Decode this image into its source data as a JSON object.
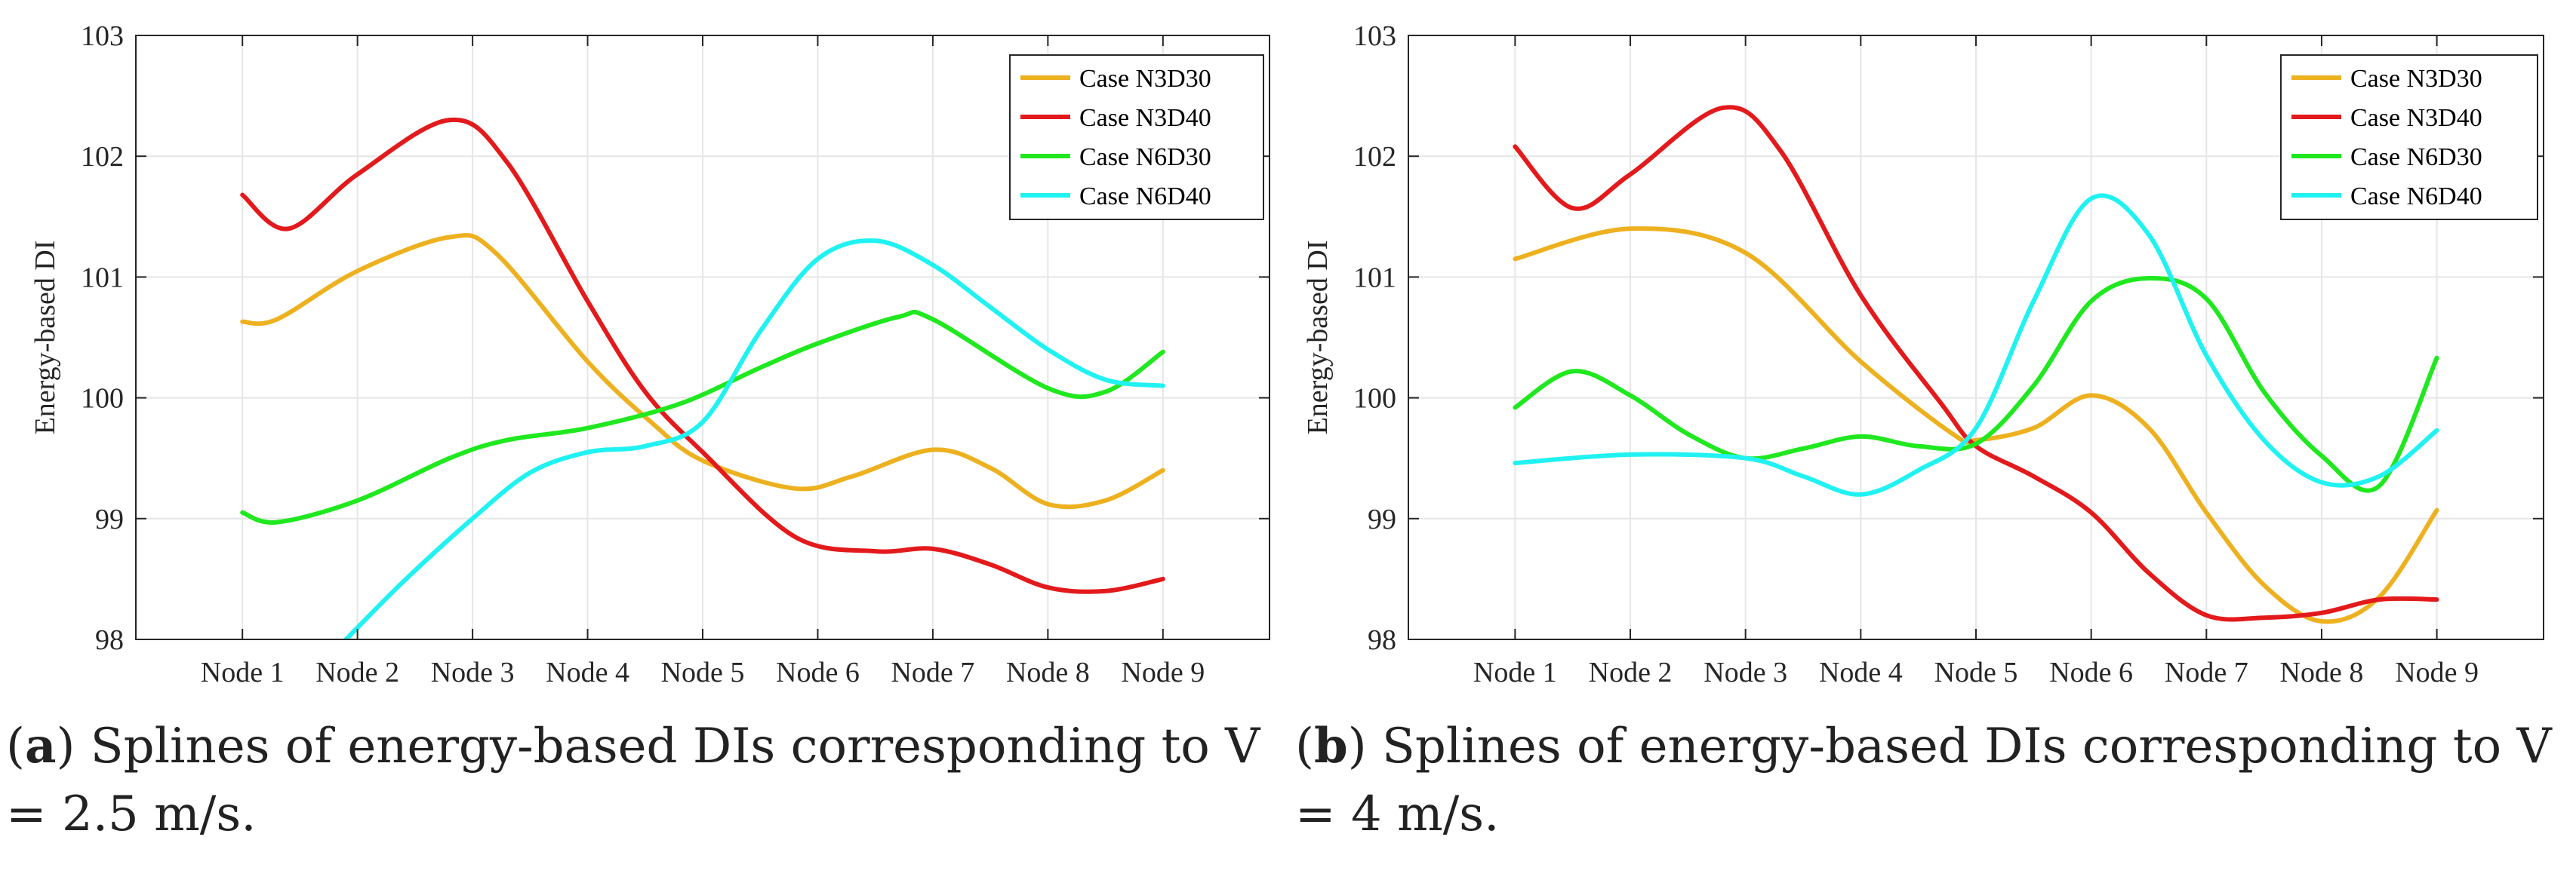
{
  "colors": {
    "N3D30": "#EDB120",
    "N3D40": "#E31A1C",
    "N6D30": "#1FE81F",
    "N6D40": "#20F2F2"
  },
  "chart_data": [
    {
      "type": "line",
      "smooth": "spline",
      "ylabel": "Energy-based DI",
      "ylim": [
        98,
        103
      ],
      "yticks": [
        "98",
        "99",
        "100",
        "101",
        "102",
        "103"
      ],
      "categories": [
        "Node 1",
        "Node 2",
        "Node 3",
        "Node 4",
        "Node 5",
        "Node 6",
        "Node 7",
        "Node 8",
        "Node 9"
      ],
      "grid": true,
      "legend": "top-right",
      "series": [
        {
          "key": "N3D30",
          "name": "Case N3D30",
          "x": [
            1,
            1.3,
            2,
            2.8,
            3.2,
            4,
            4.55,
            5,
            5.8,
            6.3,
            7,
            7.5,
            8,
            8.5,
            9
          ],
          "values": [
            100.63,
            100.65,
            101.05,
            101.33,
            101.2,
            100.3,
            99.8,
            99.48,
            99.25,
            99.35,
            99.57,
            99.42,
            99.12,
            99.15,
            99.4
          ]
        },
        {
          "key": "N3D40",
          "name": "Case N3D40",
          "x": [
            1,
            1.4,
            2,
            2.8,
            3.3,
            4,
            4.5,
            5,
            5.8,
            6.5,
            7,
            7.5,
            8,
            8.5,
            9
          ],
          "values": [
            101.68,
            101.4,
            101.85,
            102.3,
            101.95,
            100.8,
            100.05,
            99.55,
            98.85,
            98.73,
            98.75,
            98.62,
            98.43,
            98.4,
            98.5
          ]
        },
        {
          "key": "N6D30",
          "name": "Case N6D30",
          "x": [
            1,
            1.3,
            2,
            2.8,
            3.3,
            4,
            4.8,
            5.5,
            6,
            6.7,
            7,
            8,
            8.5,
            9
          ],
          "values": [
            99.05,
            98.97,
            99.15,
            99.5,
            99.65,
            99.75,
            99.95,
            100.25,
            100.45,
            100.67,
            100.65,
            100.08,
            100.05,
            100.38
          ]
        },
        {
          "key": "N6D40",
          "name": "Case N6D40",
          "x": [
            1.9,
            2.4,
            3,
            3.5,
            4,
            4.5,
            5,
            5.5,
            6,
            6.5,
            7,
            7.5,
            8,
            8.5,
            9
          ],
          "values": [
            98.0,
            98.48,
            99.0,
            99.38,
            99.55,
            99.6,
            99.8,
            100.55,
            101.15,
            101.3,
            101.1,
            100.75,
            100.4,
            100.15,
            100.1
          ]
        }
      ]
    },
    {
      "type": "line",
      "smooth": "spline",
      "ylabel": "Energy-based DI",
      "ylim": [
        98,
        103
      ],
      "yticks": [
        "98",
        "99",
        "100",
        "101",
        "102",
        "103"
      ],
      "categories": [
        "Node 1",
        "Node 2",
        "Node 3",
        "Node 4",
        "Node 5",
        "Node 6",
        "Node 7",
        "Node 8",
        "Node 9"
      ],
      "grid": true,
      "legend": "top-right",
      "series": [
        {
          "key": "N3D30",
          "name": "Case N3D30",
          "x": [
            1,
            2,
            3,
            4,
            4.8,
            5,
            5.5,
            6,
            6.5,
            7,
            7.5,
            8,
            8.5,
            9
          ],
          "values": [
            101.15,
            101.4,
            101.2,
            100.3,
            99.7,
            99.65,
            99.75,
            100.02,
            99.75,
            99.05,
            98.45,
            98.15,
            98.35,
            99.07
          ]
        },
        {
          "key": "N3D40",
          "name": "Case N3D40",
          "x": [
            1,
            1.5,
            2,
            2.8,
            3.3,
            4,
            4.7,
            5,
            5.5,
            6,
            6.5,
            7,
            7.5,
            8,
            8.5,
            9
          ],
          "values": [
            102.08,
            101.57,
            101.85,
            102.4,
            102.05,
            100.85,
            99.95,
            99.6,
            99.35,
            99.05,
            98.55,
            98.2,
            98.18,
            98.22,
            98.33,
            98.33
          ]
        },
        {
          "key": "N6D30",
          "name": "Case N6D30",
          "x": [
            1,
            1.5,
            2,
            2.5,
            3,
            3.5,
            4,
            4.5,
            5,
            5.5,
            6,
            6.5,
            7,
            7.5,
            8,
            8.5,
            9
          ],
          "values": [
            99.92,
            100.22,
            100.02,
            99.7,
            99.5,
            99.58,
            99.68,
            99.6,
            99.62,
            100.1,
            100.8,
            100.99,
            100.82,
            100.05,
            99.52,
            99.27,
            100.33
          ]
        },
        {
          "key": "N6D40",
          "name": "Case N6D40",
          "x": [
            1,
            2,
            3,
            3.5,
            4,
            4.5,
            5,
            5.5,
            6,
            6.5,
            7,
            7.5,
            8,
            8.5,
            9
          ],
          "values": [
            99.46,
            99.53,
            99.5,
            99.35,
            99.2,
            99.4,
            99.75,
            100.8,
            101.65,
            101.35,
            100.35,
            99.65,
            99.3,
            99.35,
            99.73
          ]
        }
      ]
    }
  ],
  "captions": [
    {
      "letter": "a",
      "line1": "Splines of energy-based DIs corresponding to V",
      "line2": "= 2.5 m/s."
    },
    {
      "letter": "b",
      "line1": "Splines of energy-based DIs corresponding to V",
      "line2": "= 4 m/s."
    }
  ]
}
